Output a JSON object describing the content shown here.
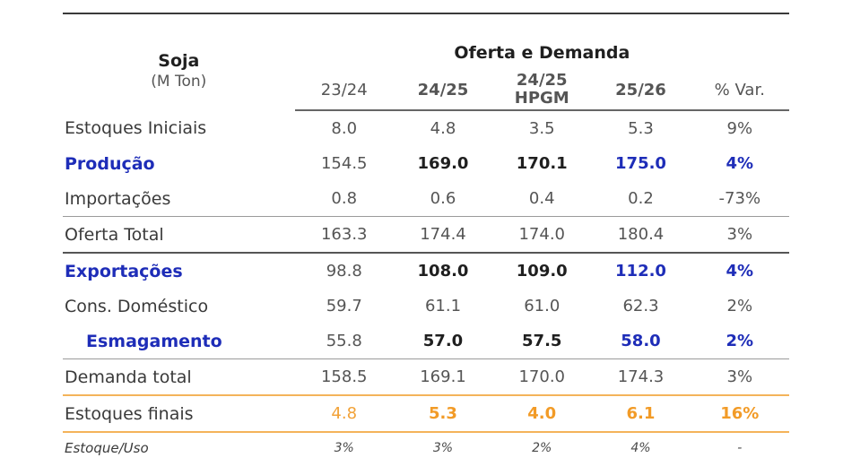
{
  "table": {
    "commodity": "Soja",
    "unit": "(M Ton)",
    "group_title": "Oferta e Demanda",
    "columns": [
      {
        "line1": "23/24",
        "line2": ""
      },
      {
        "line1": "24/25",
        "line2": ""
      },
      {
        "line1": "24/25",
        "line2": "HPGM"
      },
      {
        "line1": "25/26",
        "line2": ""
      },
      {
        "line1": "% Var.",
        "line2": ""
      }
    ],
    "rows": [
      {
        "label": "Estoques Iniciais",
        "values": [
          "8.0",
          "4.8",
          "3.5",
          "5.3",
          "9%"
        ]
      },
      {
        "label": "Produção",
        "values": [
          "154.5",
          "169.0",
          "170.1",
          "175.0",
          "4%"
        ]
      },
      {
        "label": "Importações",
        "values": [
          "0.8",
          "0.6",
          "0.4",
          "0.2",
          "-73%"
        ]
      },
      {
        "label": "Oferta Total",
        "values": [
          "163.3",
          "174.4",
          "174.0",
          "180.4",
          "3%"
        ]
      },
      {
        "label": "Exportações",
        "values": [
          "98.8",
          "108.0",
          "109.0",
          "112.0",
          "4%"
        ]
      },
      {
        "label": "Cons. Doméstico",
        "values": [
          "59.7",
          "61.1",
          "61.0",
          "62.3",
          "2%"
        ]
      },
      {
        "label": "Esmagamento",
        "values": [
          "55.8",
          "57.0",
          "57.5",
          "58.0",
          "2%"
        ]
      },
      {
        "label": "Demanda total",
        "values": [
          "158.5",
          "169.1",
          "170.0",
          "174.3",
          "3%"
        ]
      },
      {
        "label": "Estoques finais",
        "values": [
          "4.8",
          "5.3",
          "4.0",
          "6.1",
          "16%"
        ]
      },
      {
        "label": "Estoque/Uso",
        "values": [
          "3%",
          "3%",
          "2%",
          "4%",
          "-"
        ]
      }
    ]
  },
  "colors": {
    "blue": "#1e2db8",
    "orange": "#f2a238",
    "text": "#555555"
  }
}
